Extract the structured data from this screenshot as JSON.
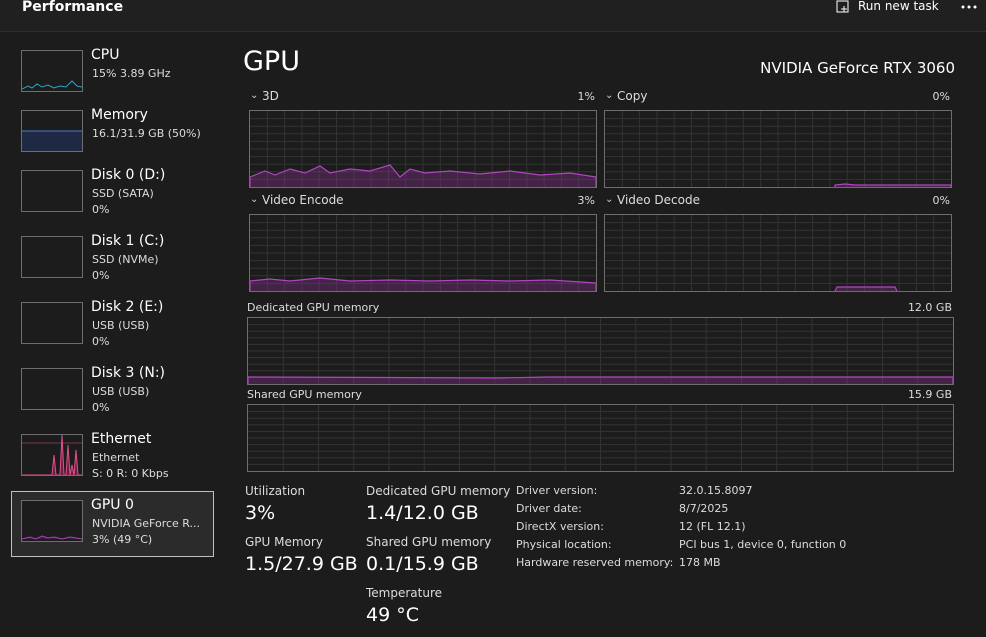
{
  "header": {
    "title": "Performance",
    "action": "Run new task"
  },
  "sidebar": [
    {
      "name": "CPU",
      "lines": [
        "15% 3.89 GHz"
      ]
    },
    {
      "name": "Memory",
      "lines": [
        "16.1/31.9 GB (50%)"
      ]
    },
    {
      "name": "Disk 0 (D:)",
      "lines": [
        "SSD (SATA)",
        "0%"
      ]
    },
    {
      "name": "Disk 1 (C:)",
      "lines": [
        "SSD (NVMe)",
        "0%"
      ]
    },
    {
      "name": "Disk 2 (E:)",
      "lines": [
        "USB (USB)",
        "0%"
      ]
    },
    {
      "name": "Disk 3 (N:)",
      "lines": [
        "USB (USB)",
        "0%"
      ]
    },
    {
      "name": "Ethernet",
      "lines": [
        "Ethernet",
        "S: 0 R: 0 Kbps"
      ]
    },
    {
      "name": "GPU 0",
      "lines": [
        "NVIDIA GeForce R...",
        "3% (49 °C)"
      ]
    }
  ],
  "main": {
    "title": "GPU",
    "device": "NVIDIA GeForce RTX 3060",
    "engines": [
      {
        "name": "3D",
        "value": "1%"
      },
      {
        "name": "Copy",
        "value": "0%"
      },
      {
        "name": "Video Encode",
        "value": "3%"
      },
      {
        "name": "Video Decode",
        "value": "0%"
      }
    ],
    "memory_graphs": [
      {
        "label": "Dedicated GPU memory",
        "max": "12.0 GB"
      },
      {
        "label": "Shared GPU memory",
        "max": "15.9 GB"
      }
    ],
    "stats": [
      {
        "label": "Utilization",
        "value": "3%"
      },
      {
        "label": "GPU Memory",
        "value": "1.5/27.9 GB"
      },
      {
        "label": "Dedicated GPU memory",
        "value": "1.4/12.0 GB"
      },
      {
        "label": "Shared GPU memory",
        "value": "0.1/15.9 GB"
      },
      {
        "label": "Temperature",
        "value": "49 °C"
      }
    ],
    "details": [
      {
        "label": "Driver version:",
        "value": "32.0.15.8097"
      },
      {
        "label": "Driver date:",
        "value": "8/7/2025"
      },
      {
        "label": "DirectX version:",
        "value": "12 (FL 12.1)"
      },
      {
        "label": "Physical location:",
        "value": "PCI bus 1, device 0, function 0"
      },
      {
        "label": "Hardware reserved memory:",
        "value": "178 MB"
      }
    ]
  }
}
